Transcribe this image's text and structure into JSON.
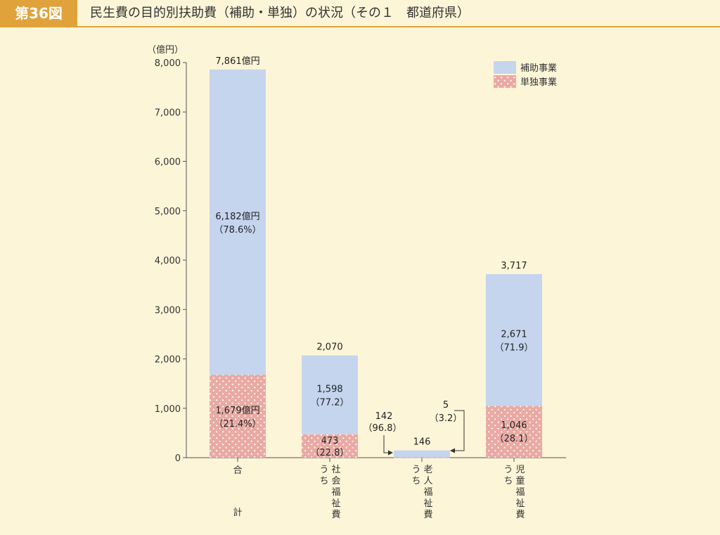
{
  "header": {
    "fig_no": "第36図",
    "title": "民生費の目的別扶助費（補助・単独）の状況（その１　都道府県）"
  },
  "chart_data": {
    "type": "bar",
    "stacked": true,
    "unit_label": "（億円）",
    "ylim": [
      0,
      8000
    ],
    "yticks": [
      "0",
      "1,000",
      "2,000",
      "3,000",
      "4,000",
      "5,000",
      "6,000",
      "7,000",
      "8,000"
    ],
    "categories": [
      "合計",
      "うち社会福祉費",
      "うち老人福祉費",
      "うち児童福祉費"
    ],
    "category_labels": [
      {
        "top": "合",
        "bottom": "計"
      },
      {
        "uchi": "うち",
        "name": "社会福祉費"
      },
      {
        "uchi": "うち",
        "name": "老人福祉費"
      },
      {
        "uchi": "うち",
        "name": "児童福祉費"
      }
    ],
    "series": [
      {
        "name": "単独事業",
        "values": [
          1679,
          473,
          5,
          1046
        ]
      },
      {
        "name": "補助事業",
        "values": [
          6182,
          1598,
          142,
          2671
        ]
      }
    ],
    "totals": [
      7861,
      2070,
      146,
      3717
    ],
    "total_labels": [
      "7,861億円",
      "2,070",
      "146",
      "3,717"
    ],
    "hojo_labels": [
      [
        "6,182億円",
        "（78.6%）"
      ],
      [
        "1,598",
        "（77.2）"
      ],
      [
        "142",
        "（96.8）"
      ],
      [
        "2,671",
        "（71.9）"
      ]
    ],
    "tandoku_labels": [
      [
        "1,679億円",
        "（21.4%）"
      ],
      [
        "473",
        "（22.8）"
      ],
      [
        "5",
        "（3.2）"
      ],
      [
        "1,046",
        "（28.1）"
      ]
    ],
    "legend": [
      {
        "name": "補助事業"
      },
      {
        "name": "単独事業"
      }
    ],
    "legend_position": "top-right",
    "colors": {
      "hojo": "#c5d5ee",
      "tandoku": "#e9aaa3",
      "dot": "#ffffff"
    }
  }
}
